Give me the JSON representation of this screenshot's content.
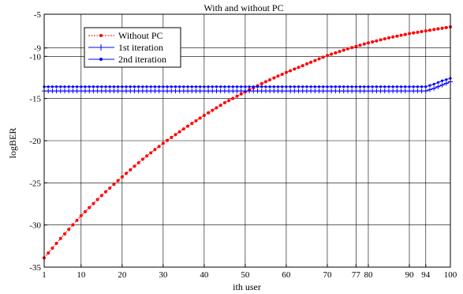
{
  "chart_data": {
    "type": "line",
    "title": "With and without PC",
    "xlabel": "ith user",
    "ylabel": "logBER",
    "xlim": [
      1,
      100
    ],
    "ylim": [
      -35,
      -5
    ],
    "x_ticks": [
      1,
      10,
      20,
      30,
      40,
      50,
      60,
      70,
      77,
      80,
      90,
      94,
      100
    ],
    "x_tick_labels": [
      "1",
      "10",
      "20",
      "30",
      "40",
      "50",
      "60",
      "70",
      "77",
      "80",
      "90",
      "94",
      "100"
    ],
    "y_ticks": [
      -35,
      -30,
      -25,
      -20,
      -15,
      -10,
      -9,
      -5
    ],
    "y_tick_labels": [
      "-35",
      "-30",
      "-25",
      "-20",
      "-15",
      "-10",
      "-9",
      "-5"
    ],
    "grid": true,
    "legend_position": "top-left",
    "series": [
      {
        "name": "Without PC",
        "color": "#ff0000",
        "line_style": "dotted",
        "marker": "dot",
        "points": [
          [
            1,
            -33.9
          ],
          [
            5,
            -31.6
          ],
          [
            10,
            -28.9
          ],
          [
            15,
            -26.5
          ],
          [
            20,
            -24.3
          ],
          [
            25,
            -22.2
          ],
          [
            30,
            -20.3
          ],
          [
            35,
            -18.6
          ],
          [
            40,
            -17.0
          ],
          [
            45,
            -15.5
          ],
          [
            50,
            -14.2
          ],
          [
            55,
            -13.0
          ],
          [
            60,
            -11.9
          ],
          [
            65,
            -10.9
          ],
          [
            70,
            -9.9
          ],
          [
            75,
            -9.1
          ],
          [
            80,
            -8.4
          ],
          [
            85,
            -7.8
          ],
          [
            90,
            -7.3
          ],
          [
            95,
            -6.9
          ],
          [
            100,
            -6.5
          ]
        ]
      },
      {
        "name": "1st iteration",
        "color": "#0000ff",
        "line_style": "solid",
        "marker": "plus",
        "points": [
          [
            1,
            -14.1
          ],
          [
            94,
            -14.1
          ],
          [
            96,
            -13.8
          ],
          [
            98,
            -13.4
          ],
          [
            100,
            -13.0
          ]
        ]
      },
      {
        "name": "2nd iteration",
        "color": "#0000ff",
        "line_style": "solid",
        "marker": "dot",
        "points": [
          [
            1,
            -13.6
          ],
          [
            94,
            -13.6
          ],
          [
            96,
            -13.3
          ],
          [
            98,
            -12.9
          ],
          [
            100,
            -12.6
          ]
        ]
      }
    ]
  }
}
